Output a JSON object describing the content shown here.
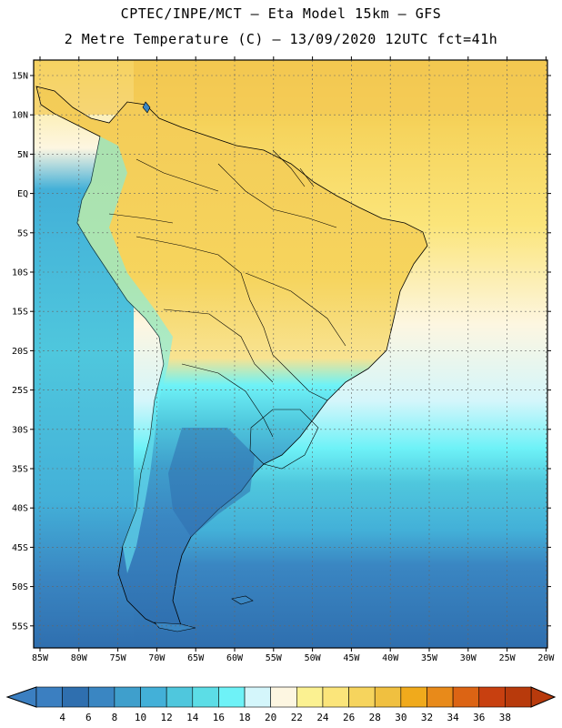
{
  "header": {
    "line1": "CPTEC/INPE/MCT —  Eta Model 15km — GFS",
    "line2": "2 Metre Temperature (C) — 13/09/2020 12UTC fct=41h"
  },
  "map": {
    "lat_labels": [
      "15N",
      "10N",
      "5N",
      "EQ",
      "5S",
      "10S",
      "15S",
      "20S",
      "25S",
      "30S",
      "35S",
      "40S",
      "45S",
      "50S",
      "55S"
    ],
    "lon_labels": [
      "85W",
      "80W",
      "75W",
      "70W",
      "65W",
      "60W",
      "55W",
      "50W",
      "45W",
      "40W",
      "35W",
      "30W",
      "25W",
      "20W"
    ],
    "land_color": "#f3cb57",
    "ocean_warm_color": "#fbe57a"
  },
  "colorbar": {
    "labels": [
      "4",
      "6",
      "8",
      "10",
      "12",
      "14",
      "16",
      "18",
      "20",
      "22",
      "24",
      "26",
      "28",
      "30",
      "32",
      "34",
      "36",
      "38"
    ],
    "colors": [
      "#3b7fc1",
      "#2f6faf",
      "#3a86c2",
      "#3f9fcc",
      "#43b0d8",
      "#4fc7dd",
      "#5cdde6",
      "#6ef2f7",
      "#d4f6fb",
      "#fdf6e1",
      "#fbf191",
      "#fbe57a",
      "#f6d45d",
      "#f0c040",
      "#f0aa1c",
      "#e88a1a",
      "#dc6414",
      "#c84010",
      "#b83a0c"
    ]
  }
}
